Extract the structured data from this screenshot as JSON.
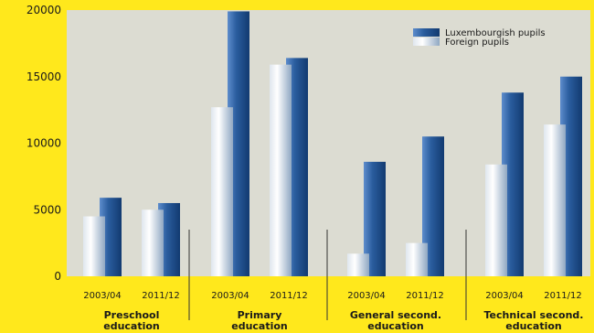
{
  "chart_data": {
    "type": "bar",
    "ylim": [
      0,
      20000
    ],
    "yticks": [
      0,
      5000,
      10000,
      15000,
      20000
    ],
    "grid": false,
    "legend_position": "top-right",
    "colors": {
      "background": "#ffe81c",
      "plot_area": "#dcdcd2",
      "luxembourgish": "#2a5d9e",
      "foreign": "#b9c7d8",
      "divider": "#333333"
    },
    "groups": [
      {
        "label_lines": [
          "Preschool",
          "education"
        ],
        "periods": [
          "2003/04",
          "2011/12"
        ]
      },
      {
        "label_lines": [
          "Primary",
          "education"
        ],
        "periods": [
          "2003/04",
          "2011/12"
        ]
      },
      {
        "label_lines": [
          "General second.",
          "education"
        ],
        "periods": [
          "2003/04",
          "2011/12"
        ]
      },
      {
        "label_lines": [
          "Technical second.",
          "education"
        ],
        "periods": [
          "2003/04",
          "2011/12"
        ]
      }
    ],
    "series": [
      {
        "name": "Foreign pupils",
        "values": [
          [
            4500,
            5000
          ],
          [
            12700,
            15900
          ],
          [
            1700,
            2500
          ],
          [
            8400,
            11400
          ]
        ]
      },
      {
        "name": "Luxembourgish pupils",
        "values": [
          [
            5900,
            5500
          ],
          [
            19900,
            16400
          ],
          [
            8600,
            10500
          ],
          [
            13800,
            15000
          ]
        ]
      }
    ]
  }
}
